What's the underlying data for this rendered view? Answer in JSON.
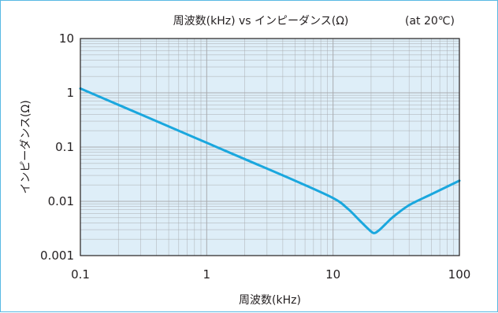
{
  "chart_data": {
    "type": "line",
    "title": "周波数(kHz) vs インピーダンス(Ω)",
    "subtitle": "(at 20℃)",
    "xlabel": "周波数(kHz)",
    "ylabel": "インピーダンス(Ω)",
    "xscale": "log",
    "yscale": "log",
    "xlim": [
      0.1,
      100
    ],
    "ylim": [
      0.001,
      10
    ],
    "grid": true,
    "x_ticks": [
      0.1,
      1,
      10,
      100
    ],
    "x_tick_labels": [
      "0.1",
      "1",
      "10",
      "100"
    ],
    "y_ticks": [
      0.001,
      0.01,
      0.1,
      1,
      10
    ],
    "y_tick_labels": [
      "0.001",
      "0.01",
      "0.1",
      "1",
      "10"
    ],
    "series": [
      {
        "color": "#1aa7de",
        "x": [
          0.1,
          0.2,
          0.5,
          1,
          2,
          5,
          10,
          13,
          16,
          19,
          21,
          23,
          26,
          30,
          40,
          60,
          100
        ],
        "y": [
          1.2,
          0.6,
          0.24,
          0.12,
          0.06,
          0.024,
          0.0115,
          0.0074,
          0.0046,
          0.0031,
          0.0026,
          0.0029,
          0.0038,
          0.0052,
          0.0085,
          0.0135,
          0.024
        ]
      }
    ]
  },
  "colors": {
    "plot_background": "#deeef8",
    "frame": "#58b9e3",
    "grid": "#a6a8ab",
    "axis": "#231f20"
  }
}
